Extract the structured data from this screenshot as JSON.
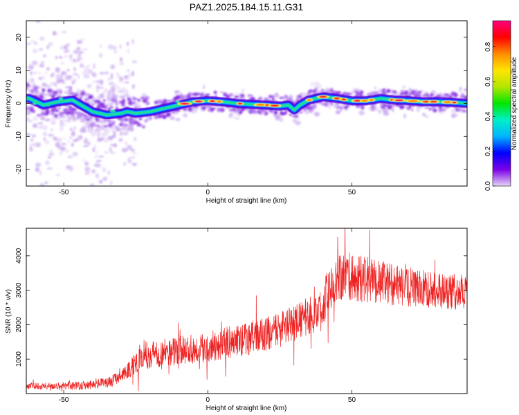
{
  "title": "PAZ1.2025.184.15.11.G31",
  "chart_data": [
    {
      "type": "heatmap",
      "xlabel": "Height of straight line (km)",
      "ylabel": "Frequency (Hz)",
      "xlim": [
        -63,
        90
      ],
      "ylim": [
        -25,
        25
      ],
      "xticks": [
        -50,
        0,
        50
      ],
      "yticks": [
        -20,
        -10,
        0,
        10,
        20
      ],
      "ridge": {
        "x": [
          -62,
          -57,
          -52,
          -47,
          -43,
          -40,
          -35,
          -30,
          -28,
          -25,
          -20,
          -15,
          -10,
          -5,
          0,
          5,
          10,
          15,
          20,
          25,
          28,
          30,
          32,
          35,
          40,
          45,
          50,
          55,
          60,
          65,
          70,
          75,
          80,
          85,
          90
        ],
        "y": [
          1.5,
          -0.5,
          0.5,
          1.0,
          -1.0,
          -2.5,
          -3.5,
          -3.0,
          -2.5,
          -3.0,
          -2.5,
          -1.5,
          -0.5,
          0.5,
          0.8,
          0.5,
          0.0,
          -0.3,
          -0.5,
          -0.8,
          -0.5,
          -2.0,
          -0.5,
          1.0,
          2.0,
          1.5,
          0.8,
          0.8,
          1.5,
          1.0,
          0.8,
          0.5,
          0.5,
          0.3,
          0.0
        ]
      },
      "colorbar": {
        "label": "Normalized spectral amplitude",
        "range": [
          0,
          0.95
        ],
        "ticks": [
          "0.0",
          "0.2",
          "0.4",
          "0.6",
          "0.8"
        ],
        "tick_values": [
          0.0,
          0.2,
          0.4,
          0.6,
          0.8
        ],
        "colors": [
          "#e6d6f7",
          "#7a00e6",
          "#0000ff",
          "#00b4ff",
          "#00f0c8",
          "#00e600",
          "#b4e600",
          "#ffe600",
          "#ff8c00",
          "#ff0000",
          "#ff0080"
        ]
      }
    },
    {
      "type": "line",
      "xlabel": "Height of straight line (km)",
      "ylabel": "SNR (10 * v/v)",
      "xlim": [
        -63,
        90
      ],
      "ylim": [
        0,
        4800
      ],
      "xticks": [
        -50,
        0,
        50
      ],
      "yticks": [
        1000,
        2000,
        3000,
        4000
      ],
      "series": [
        {
          "color": "#ee2222",
          "trend": {
            "x": [
              -63,
              -55,
              -45,
              -35,
              -30,
              -27,
              -24,
              -20,
              -15,
              -10,
              -5,
              0,
              5,
              10,
              15,
              20,
              25,
              30,
              35,
              40,
              42,
              45,
              50,
              55,
              60,
              65,
              70,
              75,
              80,
              85,
              90
            ],
            "y": [
              220,
              220,
              230,
              320,
              500,
              720,
              1000,
              1150,
              1180,
              1250,
              1300,
              1350,
              1450,
              1520,
              1620,
              1720,
              1850,
              2050,
              2250,
              2450,
              3150,
              3450,
              3350,
              3300,
              3250,
              3150,
              3050,
              3050,
              3000,
              2950,
              2950
            ]
          },
          "noise": {
            "x": [
              -63,
              -30,
              -24,
              -10,
              10,
              30,
              40,
              42,
              50,
              60,
              70,
              90
            ],
            "y": [
              90,
              160,
              420,
              420,
              480,
              520,
              620,
              780,
              720,
              640,
              560,
              520
            ]
          }
        }
      ]
    }
  ]
}
